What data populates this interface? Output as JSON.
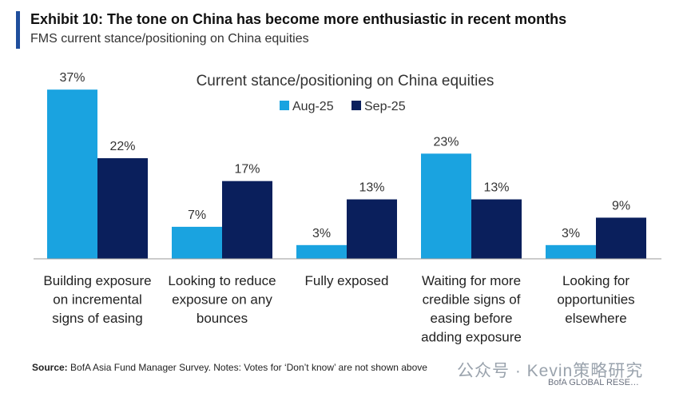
{
  "header": {
    "title": "Exhibit 10: The tone on China has become more enthusiastic in recent months",
    "subtitle": "FMS current stance/positioning on China equities"
  },
  "footer": {
    "source_label": "Source:",
    "source_text": "BofA Asia Fund Manager Survey. Notes: Votes for ‘Don’t know’ are not shown above",
    "watermark": "公众号 · Kevin策略研究",
    "brand": "BofA GLOBAL RESE…"
  },
  "colors": {
    "accent": "#1f4e9c",
    "aug": "#1aa3e0",
    "sep": "#0a1f5c"
  },
  "chart_data": {
    "type": "bar",
    "title": "Current stance/positioning on China equities",
    "categories": [
      [
        "Building exposure",
        "on incremental",
        "signs of easing"
      ],
      [
        "Looking to reduce",
        "exposure on any",
        "bounces"
      ],
      [
        "Fully exposed"
      ],
      [
        "Waiting for more",
        "credible signs of",
        "easing before",
        "adding exposure"
      ],
      [
        "Looking for",
        "opportunities",
        "elsewhere"
      ]
    ],
    "series": [
      {
        "name": "Aug-25",
        "values": [
          37,
          7,
          3,
          23,
          3
        ]
      },
      {
        "name": "Sep-25",
        "values": [
          22,
          17,
          13,
          13,
          9
        ]
      }
    ],
    "value_suffix": "%",
    "ylim": [
      0,
      40
    ],
    "legend": "top-center",
    "grid": false
  }
}
